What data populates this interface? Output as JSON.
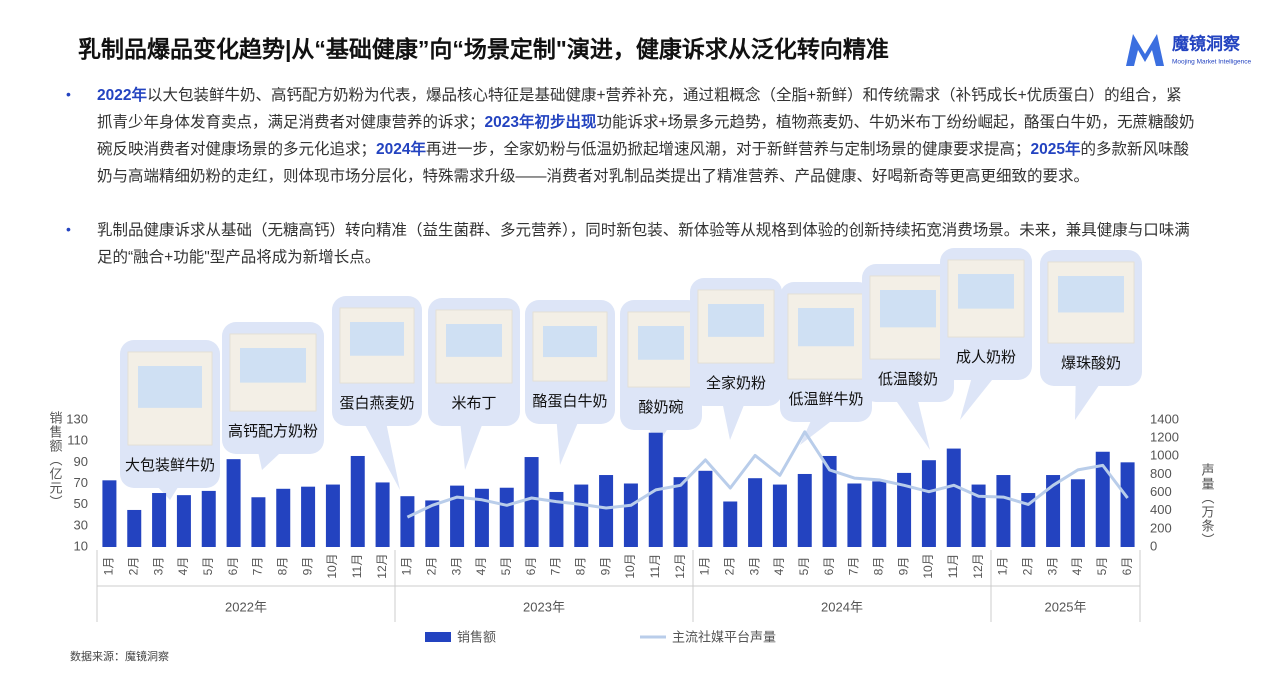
{
  "header": {
    "title": "乳制品爆品变化趋势|从“基础健康”向“场景定制\"演进，健康诉求从泛化转向精准",
    "logo": "魔镜洞察",
    "logo_sub": "Moojing Market Intelligence"
  },
  "bullets": [
    {
      "segments": [
        {
          "text": "2022年",
          "highlight": true
        },
        {
          "text": "以大包装鲜牛奶、高钙配方奶粉为代表，爆品核心特征是基础健康+营养补充，通过粗概念（全脂+新鲜）和传统需求（补钙成长+优质蛋白）的组合，紧抓青少年身体发育卖点，满足消费者对健康营养的诉求；",
          "highlight": false
        },
        {
          "text": "2023年初步出现",
          "highlight": true
        },
        {
          "text": "功能诉求+场景多元趋势，植物燕麦奶、牛奶米布丁纷纷崛起，酪蛋白牛奶，无蔗糖酸奶碗反映消费者对健康场景的多元化追求；",
          "highlight": false
        },
        {
          "text": "2024年",
          "highlight": true
        },
        {
          "text": "再进一步，全家奶粉与低温奶掀起增速风潮，对于新鲜营养与定制场景的健康要求提高；",
          "highlight": false
        },
        {
          "text": "2025年",
          "highlight": true
        },
        {
          "text": "的多款新风味酸奶与高端精细奶粉的走红，则体现市场分层化，特殊需求升级——消费者对乳制品类提出了精准营养、产品健康、好喝新奇等更高更细致的要求。",
          "highlight": false
        }
      ]
    },
    {
      "segments": [
        {
          "text": "乳制品健康诉求从基础（无糖高钙）转向精准（益生菌群、多元营养），同时新包装、新体验等从规格到体验的创新持续拓宽消费场景。未来，兼具健康与口味满足的“融合+功能\"型产品将成为新增长点。",
          "highlight": false
        }
      ]
    }
  ],
  "callouts": [
    "大包装鲜牛奶",
    "高钙配方奶粉",
    "蛋白燕麦奶",
    "米布丁",
    "酪蛋白牛奶",
    "酸奶碗",
    "全家奶粉",
    "低温鲜牛奶",
    "低温酸奶",
    "成人奶粉",
    "爆珠酸奶"
  ],
  "chart_data": {
    "type": "bar_line",
    "category_groups": [
      {
        "label": "2022年",
        "categories": [
          "1月",
          "2月",
          "3月",
          "4月",
          "5月",
          "6月",
          "7月",
          "8月",
          "9月",
          "10月",
          "11月",
          "12月"
        ]
      },
      {
        "label": "2023年",
        "categories": [
          "1月",
          "2月",
          "3月",
          "4月",
          "5月",
          "6月",
          "7月",
          "8月",
          "9月",
          "10月",
          "11月",
          "12月"
        ]
      },
      {
        "label": "2024年",
        "categories": [
          "1月",
          "2月",
          "3月",
          "4月",
          "5月",
          "6月",
          "7月",
          "8月",
          "9月",
          "10月",
          "11月",
          "12月"
        ]
      },
      {
        "label": "2025年",
        "categories": [
          "1月",
          "2月",
          "3月",
          "4月",
          "5月",
          "6月"
        ]
      }
    ],
    "series": [
      {
        "name": "销售额",
        "type": "bar",
        "color": "#2343c0",
        "values": [
          73,
          45,
          61,
          59,
          63,
          93,
          57,
          65,
          67,
          69,
          96,
          71,
          58,
          54,
          68,
          65,
          66,
          95,
          62,
          69,
          78,
          70,
          118,
          76,
          82,
          53,
          75,
          69,
          79,
          96,
          70,
          72,
          80,
          92,
          103,
          69,
          78,
          61,
          78,
          74,
          100,
          90
        ]
      },
      {
        "name": "主流社媒平台声量",
        "type": "line",
        "axis": "y2",
        "color": "#b9cdea",
        "values": [
          null,
          null,
          null,
          null,
          null,
          null,
          null,
          null,
          null,
          null,
          null,
          null,
          330,
          460,
          550,
          520,
          460,
          540,
          500,
          470,
          430,
          460,
          630,
          680,
          960,
          650,
          1010,
          790,
          1270,
          850,
          760,
          740,
          680,
          610,
          680,
          560,
          550,
          470,
          680,
          850,
          900,
          540
        ]
      }
    ],
    "ylabel": "销售额（亿元）",
    "y2label": "声量（万条）",
    "ylim": [
      10,
      130
    ],
    "yticks": [
      10,
      30,
      50,
      70,
      90,
      110,
      130
    ],
    "y2lim": [
      0,
      1400
    ],
    "y2ticks": [
      0,
      200,
      400,
      600,
      800,
      1000,
      1200,
      1400
    ],
    "source": "数据来源：魔镜洞察"
  }
}
